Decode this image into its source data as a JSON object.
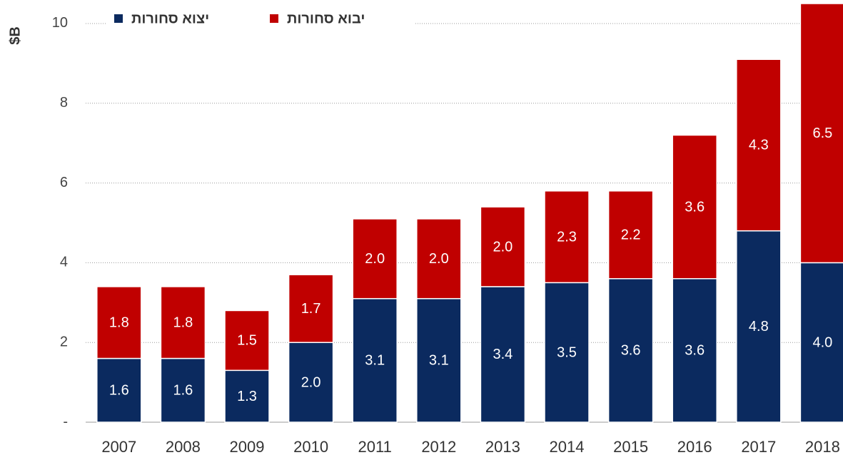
{
  "chart_data": {
    "type": "bar",
    "stacked": true,
    "ylabel": "$B",
    "categories": [
      "2007",
      "2008",
      "2009",
      "2010",
      "2011",
      "2012",
      "2013",
      "2014",
      "2015",
      "2016",
      "2017",
      "2018"
    ],
    "series": [
      {
        "name": "יצוא סחורות",
        "color": "#0b2a5f",
        "values": [
          1.6,
          1.6,
          1.3,
          2.0,
          3.1,
          3.1,
          3.4,
          3.5,
          3.6,
          3.6,
          4.8,
          4.0
        ],
        "value_labels": [
          "1.6",
          "1.6",
          "1.3",
          "2.0",
          "3.1",
          "3.1",
          "3.4",
          "3.5",
          "3.6",
          "3.6",
          "4.8",
          "4.0"
        ]
      },
      {
        "name": "יבוא סחורות",
        "color": "#c00000",
        "values": [
          1.8,
          1.8,
          1.5,
          1.7,
          2.0,
          2.0,
          2.0,
          2.3,
          2.2,
          3.6,
          4.3,
          6.5
        ],
        "value_labels": [
          "1.8",
          "1.8",
          "1.5",
          "1.7",
          "2.0",
          "2.0",
          "2.0",
          "2.3",
          "2.2",
          "3.6",
          "4.3",
          "6.5"
        ]
      }
    ],
    "ylim": [
      0,
      10.5
    ],
    "yticks": [
      {
        "value": 0,
        "label": "-"
      },
      2,
      4,
      6,
      8,
      10
    ],
    "grid": true,
    "legend": "top-left"
  }
}
